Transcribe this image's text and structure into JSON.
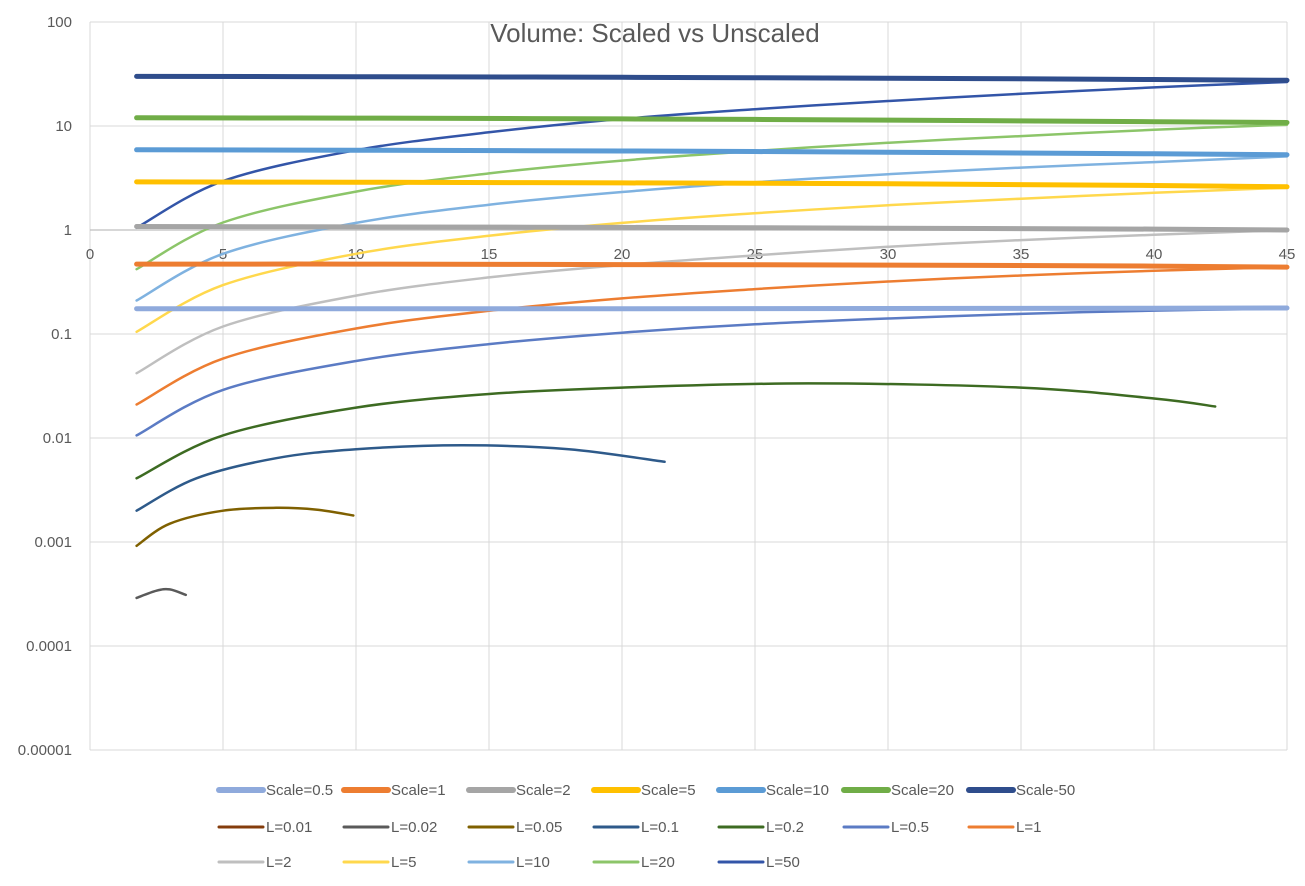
{
  "chart_data": {
    "type": "line",
    "title": "Volume: Scaled vs Unscaled",
    "xlabel": "",
    "ylabel": "",
    "xlim": [
      0,
      45
    ],
    "ylim": [
      1e-05,
      100
    ],
    "y_scale": "log",
    "grid": true,
    "legend_position": "bottom",
    "x_ticks": [
      "0",
      "5",
      "10",
      "15",
      "20",
      "25",
      "30",
      "35",
      "40",
      "45"
    ],
    "y_ticks": [
      "100",
      "10",
      "1",
      "0.1",
      "0.01",
      "0.001",
      "0.0001",
      "0.00001"
    ],
    "series": [
      {
        "name": "Scale=0.5",
        "color": "#8FAADC",
        "width": 5,
        "x": [
          1.75,
          10,
          20,
          30,
          40,
          45
        ],
        "y": [
          0.175,
          0.175,
          0.175,
          0.176,
          0.177,
          0.178
        ]
      },
      {
        "name": "Scale=1",
        "color": "#ED7D31",
        "width": 5,
        "x": [
          1.75,
          10,
          20,
          30,
          40,
          45
        ],
        "y": [
          0.47,
          0.47,
          0.465,
          0.46,
          0.45,
          0.44
        ]
      },
      {
        "name": "Scale=2",
        "color": "#A5A5A5",
        "width": 5,
        "x": [
          1.75,
          10,
          20,
          30,
          40,
          45
        ],
        "y": [
          1.08,
          1.07,
          1.06,
          1.04,
          1.02,
          1.0
        ]
      },
      {
        "name": "Scale=5",
        "color": "#FFC000",
        "width": 5,
        "x": [
          1.75,
          10,
          20,
          30,
          40,
          45
        ],
        "y": [
          2.9,
          2.88,
          2.84,
          2.78,
          2.68,
          2.6
        ]
      },
      {
        "name": "Scale=10",
        "color": "#5B9BD5",
        "width": 5,
        "x": [
          1.75,
          10,
          20,
          30,
          40,
          45
        ],
        "y": [
          5.9,
          5.85,
          5.75,
          5.6,
          5.4,
          5.3
        ]
      },
      {
        "name": "Scale=20",
        "color": "#70AD47",
        "width": 5,
        "x": [
          1.75,
          10,
          20,
          30,
          40,
          45
        ],
        "y": [
          12.0,
          11.9,
          11.7,
          11.4,
          11.0,
          10.8
        ]
      },
      {
        "name": "Scale-50",
        "color": "#2F4D8C",
        "width": 5,
        "x": [
          1.75,
          10,
          20,
          30,
          40,
          45
        ],
        "y": [
          30.0,
          29.8,
          29.4,
          28.8,
          28.0,
          27.5
        ]
      },
      {
        "name": "L=0.01",
        "color": "#843C0C",
        "width": 2.5,
        "x": [],
        "y": []
      },
      {
        "name": "L=0.02",
        "color": "#5A5A5A",
        "width": 2.5,
        "x": [
          1.75,
          2.5,
          3.0,
          3.6
        ],
        "y": [
          0.00029,
          0.00034,
          0.00035,
          0.00031
        ]
      },
      {
        "name": "L=0.05",
        "color": "#7F6000",
        "width": 2.5,
        "x": [
          1.75,
          3,
          5,
          7,
          8.5,
          9.9
        ],
        "y": [
          0.00092,
          0.0015,
          0.002,
          0.00213,
          0.00205,
          0.0018
        ]
      },
      {
        "name": "L=0.1",
        "color": "#2E5A8A",
        "width": 2.5,
        "x": [
          1.75,
          4,
          7,
          10,
          14,
          18,
          21.6
        ],
        "y": [
          0.002,
          0.0041,
          0.0064,
          0.0078,
          0.0085,
          0.0078,
          0.0059
        ]
      },
      {
        "name": "L=0.2",
        "color": "#3D6B22",
        "width": 2.5,
        "x": [
          1.75,
          5,
          10,
          15,
          20,
          27,
          35,
          40,
          42.3
        ],
        "y": [
          0.0041,
          0.0106,
          0.0196,
          0.0265,
          0.0305,
          0.0335,
          0.0305,
          0.024,
          0.0201
        ]
      },
      {
        "name": "L=0.5",
        "color": "#5B7BC4",
        "width": 2.5,
        "x": [
          1.75,
          5,
          10,
          15,
          20,
          25,
          30,
          35,
          40,
          45
        ],
        "y": [
          0.0106,
          0.029,
          0.055,
          0.08,
          0.103,
          0.124,
          0.141,
          0.156,
          0.168,
          0.175
        ]
      },
      {
        "name": "L=1",
        "color": "#ED7D31",
        "width": 2.5,
        "x": [
          1.75,
          5,
          10,
          15,
          20,
          25,
          30,
          35,
          40,
          45
        ],
        "y": [
          0.021,
          0.058,
          0.113,
          0.167,
          0.22,
          0.27,
          0.32,
          0.365,
          0.405,
          0.44
        ]
      },
      {
        "name": "L=2",
        "color": "#BFBFBF",
        "width": 2.5,
        "x": [
          1.75,
          5,
          10,
          15,
          20,
          25,
          30,
          35,
          40,
          45
        ],
        "y": [
          0.042,
          0.118,
          0.234,
          0.35,
          0.46,
          0.57,
          0.69,
          0.8,
          0.9,
          1.0
        ]
      },
      {
        "name": "L=5",
        "color": "#FFD84D",
        "width": 2.5,
        "x": [
          1.75,
          5,
          10,
          15,
          20,
          25,
          30,
          35,
          40,
          45
        ],
        "y": [
          0.105,
          0.295,
          0.59,
          0.88,
          1.17,
          1.45,
          1.73,
          2.0,
          2.28,
          2.55
        ]
      },
      {
        "name": "L=10",
        "color": "#7FB2E0",
        "width": 2.5,
        "x": [
          1.75,
          5,
          10,
          15,
          20,
          25,
          30,
          35,
          40,
          45
        ],
        "y": [
          0.21,
          0.59,
          1.17,
          1.75,
          2.32,
          2.88,
          3.44,
          3.98,
          4.5,
          5.1
        ]
      },
      {
        "name": "L=20",
        "color": "#8CC569",
        "width": 2.5,
        "x": [
          1.75,
          5,
          10,
          15,
          20,
          25,
          30,
          35,
          40,
          45
        ],
        "y": [
          0.42,
          1.18,
          2.34,
          3.5,
          4.65,
          5.75,
          6.9,
          8.0,
          9.2,
          10.3
        ]
      },
      {
        "name": "L=50",
        "color": "#3355A8",
        "width": 2.5,
        "x": [
          1.75,
          5,
          10,
          15,
          20,
          25,
          30,
          35,
          40,
          45
        ],
        "y": [
          1.05,
          2.95,
          5.85,
          8.7,
          11.7,
          14.5,
          17.4,
          20.4,
          23.5,
          26.5
        ]
      }
    ],
    "legend_rows": [
      [
        "Scale=0.5",
        "Scale=1",
        "Scale=2",
        "Scale=5",
        "Scale=10",
        "Scale=20",
        "Scale-50"
      ],
      [
        "L=0.01",
        "L=0.02",
        "L=0.05",
        "L=0.1",
        "L=0.2",
        "L=0.5",
        "L=1"
      ],
      [
        "L=2",
        "L=5",
        "L=10",
        "L=20",
        "L=50"
      ]
    ]
  }
}
